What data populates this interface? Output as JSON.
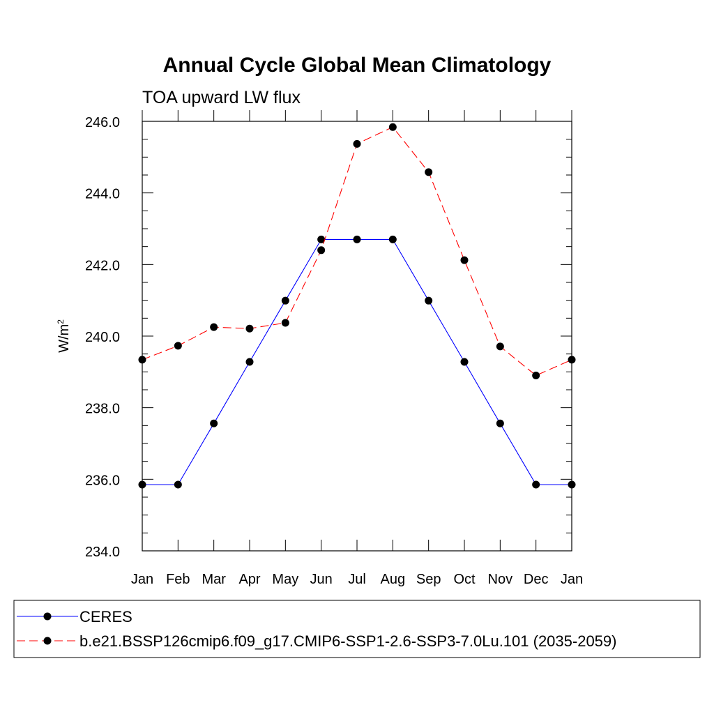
{
  "chart_data": {
    "type": "line",
    "title": "Annual Cycle Global Mean Climatology",
    "subtitle": "TOA upward LW flux",
    "ylabel": "W/m",
    "ylabel_superscript": "2",
    "xlabel": "",
    "categories": [
      "Jan",
      "Feb",
      "Mar",
      "Apr",
      "May",
      "Jun",
      "Jul",
      "Aug",
      "Sep",
      "Oct",
      "Nov",
      "Dec",
      "Jan"
    ],
    "ylim": [
      234.0,
      246.0
    ],
    "yticks": [
      "234.0",
      "236.0",
      "238.0",
      "240.0",
      "242.0",
      "244.0",
      "246.0"
    ],
    "grid": false,
    "legend_position": "bottom",
    "series": [
      {
        "name": "CERES",
        "color": "#0000ff",
        "dash": "solid",
        "marker": "filled-circle",
        "values": [
          235.85,
          235.85,
          237.56,
          239.28,
          240.99,
          242.7,
          242.7,
          242.7,
          240.99,
          239.28,
          237.56,
          235.85,
          235.85
        ]
      },
      {
        "name": "b.e21.BSSP126cmip6.f09_g17.CMIP6-SSP1-2.6-SSP3-7.0Lu.101 (2035-2059)",
        "color": "#ff0000",
        "dash": "dashed",
        "marker": "filled-circle",
        "values": [
          239.34,
          239.73,
          240.25,
          240.21,
          240.37,
          242.4,
          245.37,
          245.84,
          244.58,
          242.12,
          239.71,
          238.9,
          239.34
        ]
      }
    ]
  }
}
